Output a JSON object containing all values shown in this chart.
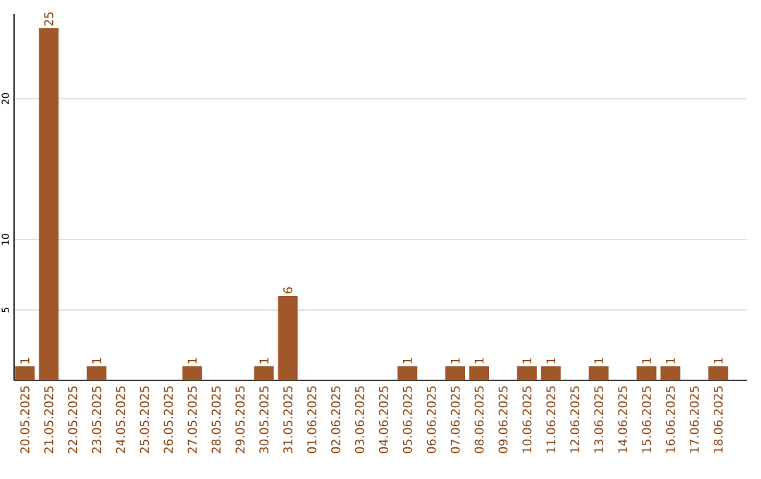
{
  "chart_data": {
    "type": "bar",
    "categories": [
      "20.05.2025",
      "21.05.2025",
      "22.05.2025",
      "23.05.2025",
      "24.05.2025",
      "25.05.2025",
      "26.05.2025",
      "27.05.2025",
      "28.05.2025",
      "29.05.2025",
      "30.05.2025",
      "31.05.2025",
      "01.06.2025",
      "02.06.2025",
      "03.06.2025",
      "04.06.2025",
      "05.06.2025",
      "06.06.2025",
      "07.06.2025",
      "08.06.2025",
      "09.06.2025",
      "10.06.2025",
      "11.06.2025",
      "12.06.2025",
      "13.06.2025",
      "14.06.2025",
      "15.06.2025",
      "16.06.2025",
      "17.06.2025",
      "18.06.2025"
    ],
    "values": [
      1,
      25,
      0,
      1,
      0,
      0,
      0,
      1,
      0,
      0,
      1,
      6,
      0,
      0,
      0,
      0,
      1,
      0,
      1,
      1,
      0,
      1,
      1,
      0,
      1,
      0,
      1,
      1,
      0,
      1
    ],
    "value_labels": [
      "1",
      "25",
      null,
      "1",
      null,
      null,
      null,
      "1",
      null,
      null,
      "1",
      "6",
      null,
      null,
      null,
      null,
      "1",
      null,
      "1",
      "1",
      null,
      "1",
      "1",
      null,
      "1",
      null,
      "1",
      "1",
      null,
      "1"
    ],
    "color": "#a0582a",
    "ylim": [
      0,
      26
    ],
    "yticks": [
      5,
      10,
      20
    ],
    "grid": "y"
  }
}
